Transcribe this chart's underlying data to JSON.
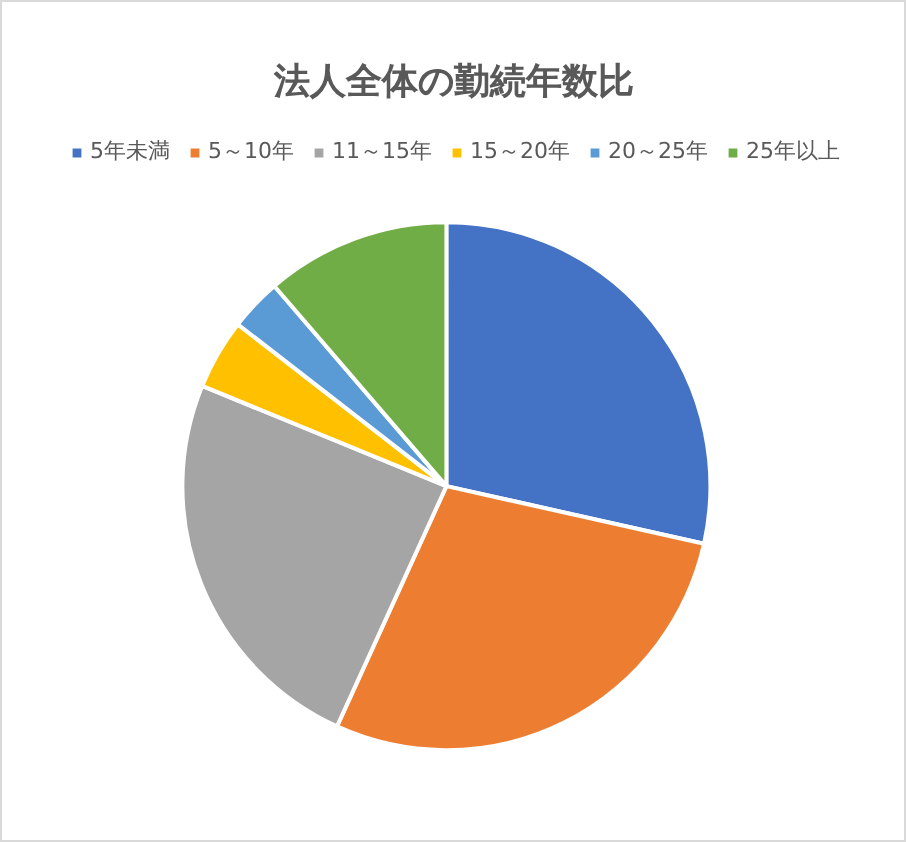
{
  "chart_data": {
    "type": "pie",
    "title": "法人全体の勤続年数比",
    "categories": [
      "5年未満",
      "5～10年",
      "11～15年",
      "15～20年",
      "20～25年",
      "25年以上"
    ],
    "values": [
      28.5,
      28.3,
      24.4,
      4.3,
      3.2,
      11.3
    ],
    "colors": [
      "#4472c4",
      "#ed7d31",
      "#a5a5a5",
      "#ffc000",
      "#5b9bd5",
      "#70ad47"
    ],
    "legend": "top"
  }
}
